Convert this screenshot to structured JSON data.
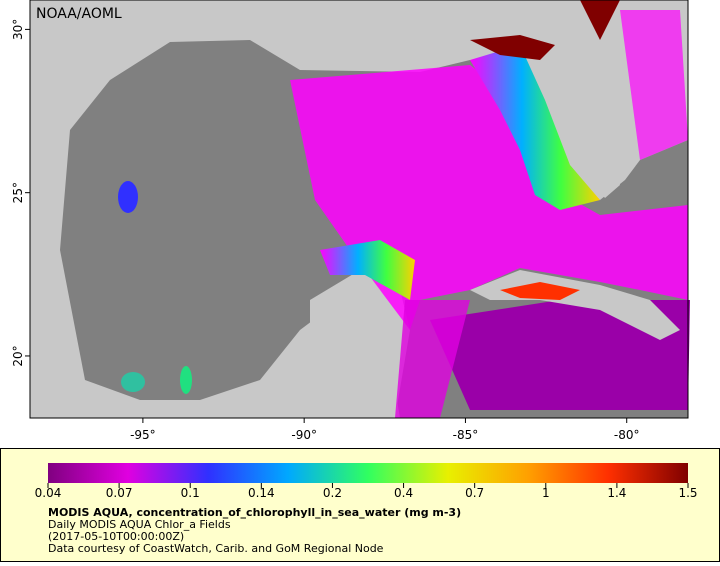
{
  "map": {
    "credit": "NOAA/AOML",
    "xlim": [
      -98.5,
      -78.1
    ],
    "ylim": [
      18.1,
      30.9
    ],
    "lon_ticks": [
      {
        "value": -95,
        "label": "-95°"
      },
      {
        "value": -90,
        "label": "-90°"
      },
      {
        "value": -85,
        "label": "-85°"
      },
      {
        "value": -80,
        "label": "-80°"
      }
    ],
    "lat_ticks": [
      {
        "value": 30,
        "label": "30°"
      },
      {
        "value": 25,
        "label": "25°"
      },
      {
        "value": 20,
        "label": "20°"
      }
    ]
  },
  "colorbar": {
    "scale": "log",
    "ticks": [
      0.04,
      0.07,
      0.1,
      0.14,
      0.2,
      0.4,
      0.7,
      1,
      1.4,
      1.5
    ],
    "colors": [
      "#800080",
      "#e000e0",
      "#3030ff",
      "#00a8ff",
      "#30ff60",
      "#e8f000",
      "#ffa000",
      "#ff3000",
      "#800000"
    ]
  },
  "caption": {
    "title": "MODIS AQUA, concentration_of_chlorophyll_in_sea_water (mg m-3)",
    "lines": [
      "Daily MODIS AQUA Chlor_a Fields",
      "(2017-05-10T00:00:00Z)",
      "Data courtesy of CoastWatch, Carib. and GoM Regional Node"
    ]
  }
}
